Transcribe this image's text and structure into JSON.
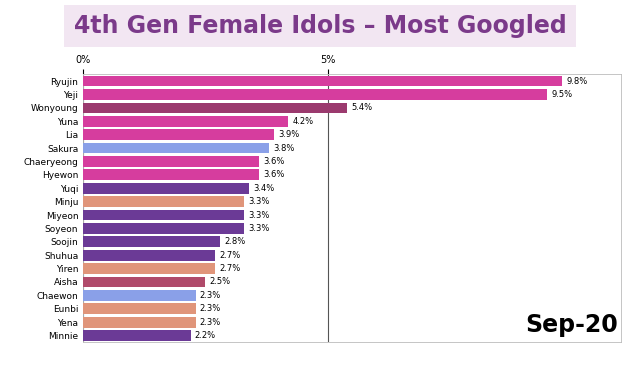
{
  "chart_data": {
    "type": "bar",
    "orientation": "horizontal",
    "title": "4th Gen Female Idols – Most Googled",
    "categories": [
      "Ryujin",
      "Yeji",
      "Wonyoung",
      "Yuna",
      "Lia",
      "Sakura",
      "Chaeryeong",
      "Hyewon",
      "Yuqi",
      "Minju",
      "Miyeon",
      "Soyeon",
      "Soojin",
      "Shuhua",
      "Yiren",
      "Aisha",
      "Chaewon",
      "Eunbi",
      "Yena",
      "Minnie"
    ],
    "values": [
      9.8,
      9.5,
      5.4,
      4.2,
      3.9,
      3.8,
      3.6,
      3.6,
      3.4,
      3.3,
      3.3,
      3.3,
      2.8,
      2.7,
      2.7,
      2.5,
      2.3,
      2.3,
      2.3,
      2.2
    ],
    "value_labels": [
      "9.8%",
      "9.5%",
      "5.4%",
      "4.2%",
      "3.9%",
      "3.8%",
      "3.6%",
      "3.6%",
      "3.4%",
      "3.3%",
      "3.3%",
      "3.3%",
      "2.8%",
      "2.7%",
      "2.7%",
      "2.5%",
      "2.3%",
      "2.3%",
      "2.3%",
      "2.2%"
    ],
    "colors": [
      "#d63d9e",
      "#d63d9e",
      "#9b3a6e",
      "#d63d9e",
      "#d63d9e",
      "#8aa0e8",
      "#d63d9e",
      "#d63d9e",
      "#6b3a96",
      "#e0957a",
      "#6b3a96",
      "#6b3a96",
      "#6b3a96",
      "#6b3a96",
      "#e0957a",
      "#b04a6a",
      "#8aa0e8",
      "#e0957a",
      "#e0957a",
      "#6b3a96"
    ],
    "xlim": [
      0,
      11
    ],
    "xticks": [
      {
        "value": 0,
        "label": "0%"
      },
      {
        "value": 5,
        "label": "5%"
      }
    ],
    "grid": true,
    "data_labels": true,
    "annotation": "Sep-20"
  }
}
